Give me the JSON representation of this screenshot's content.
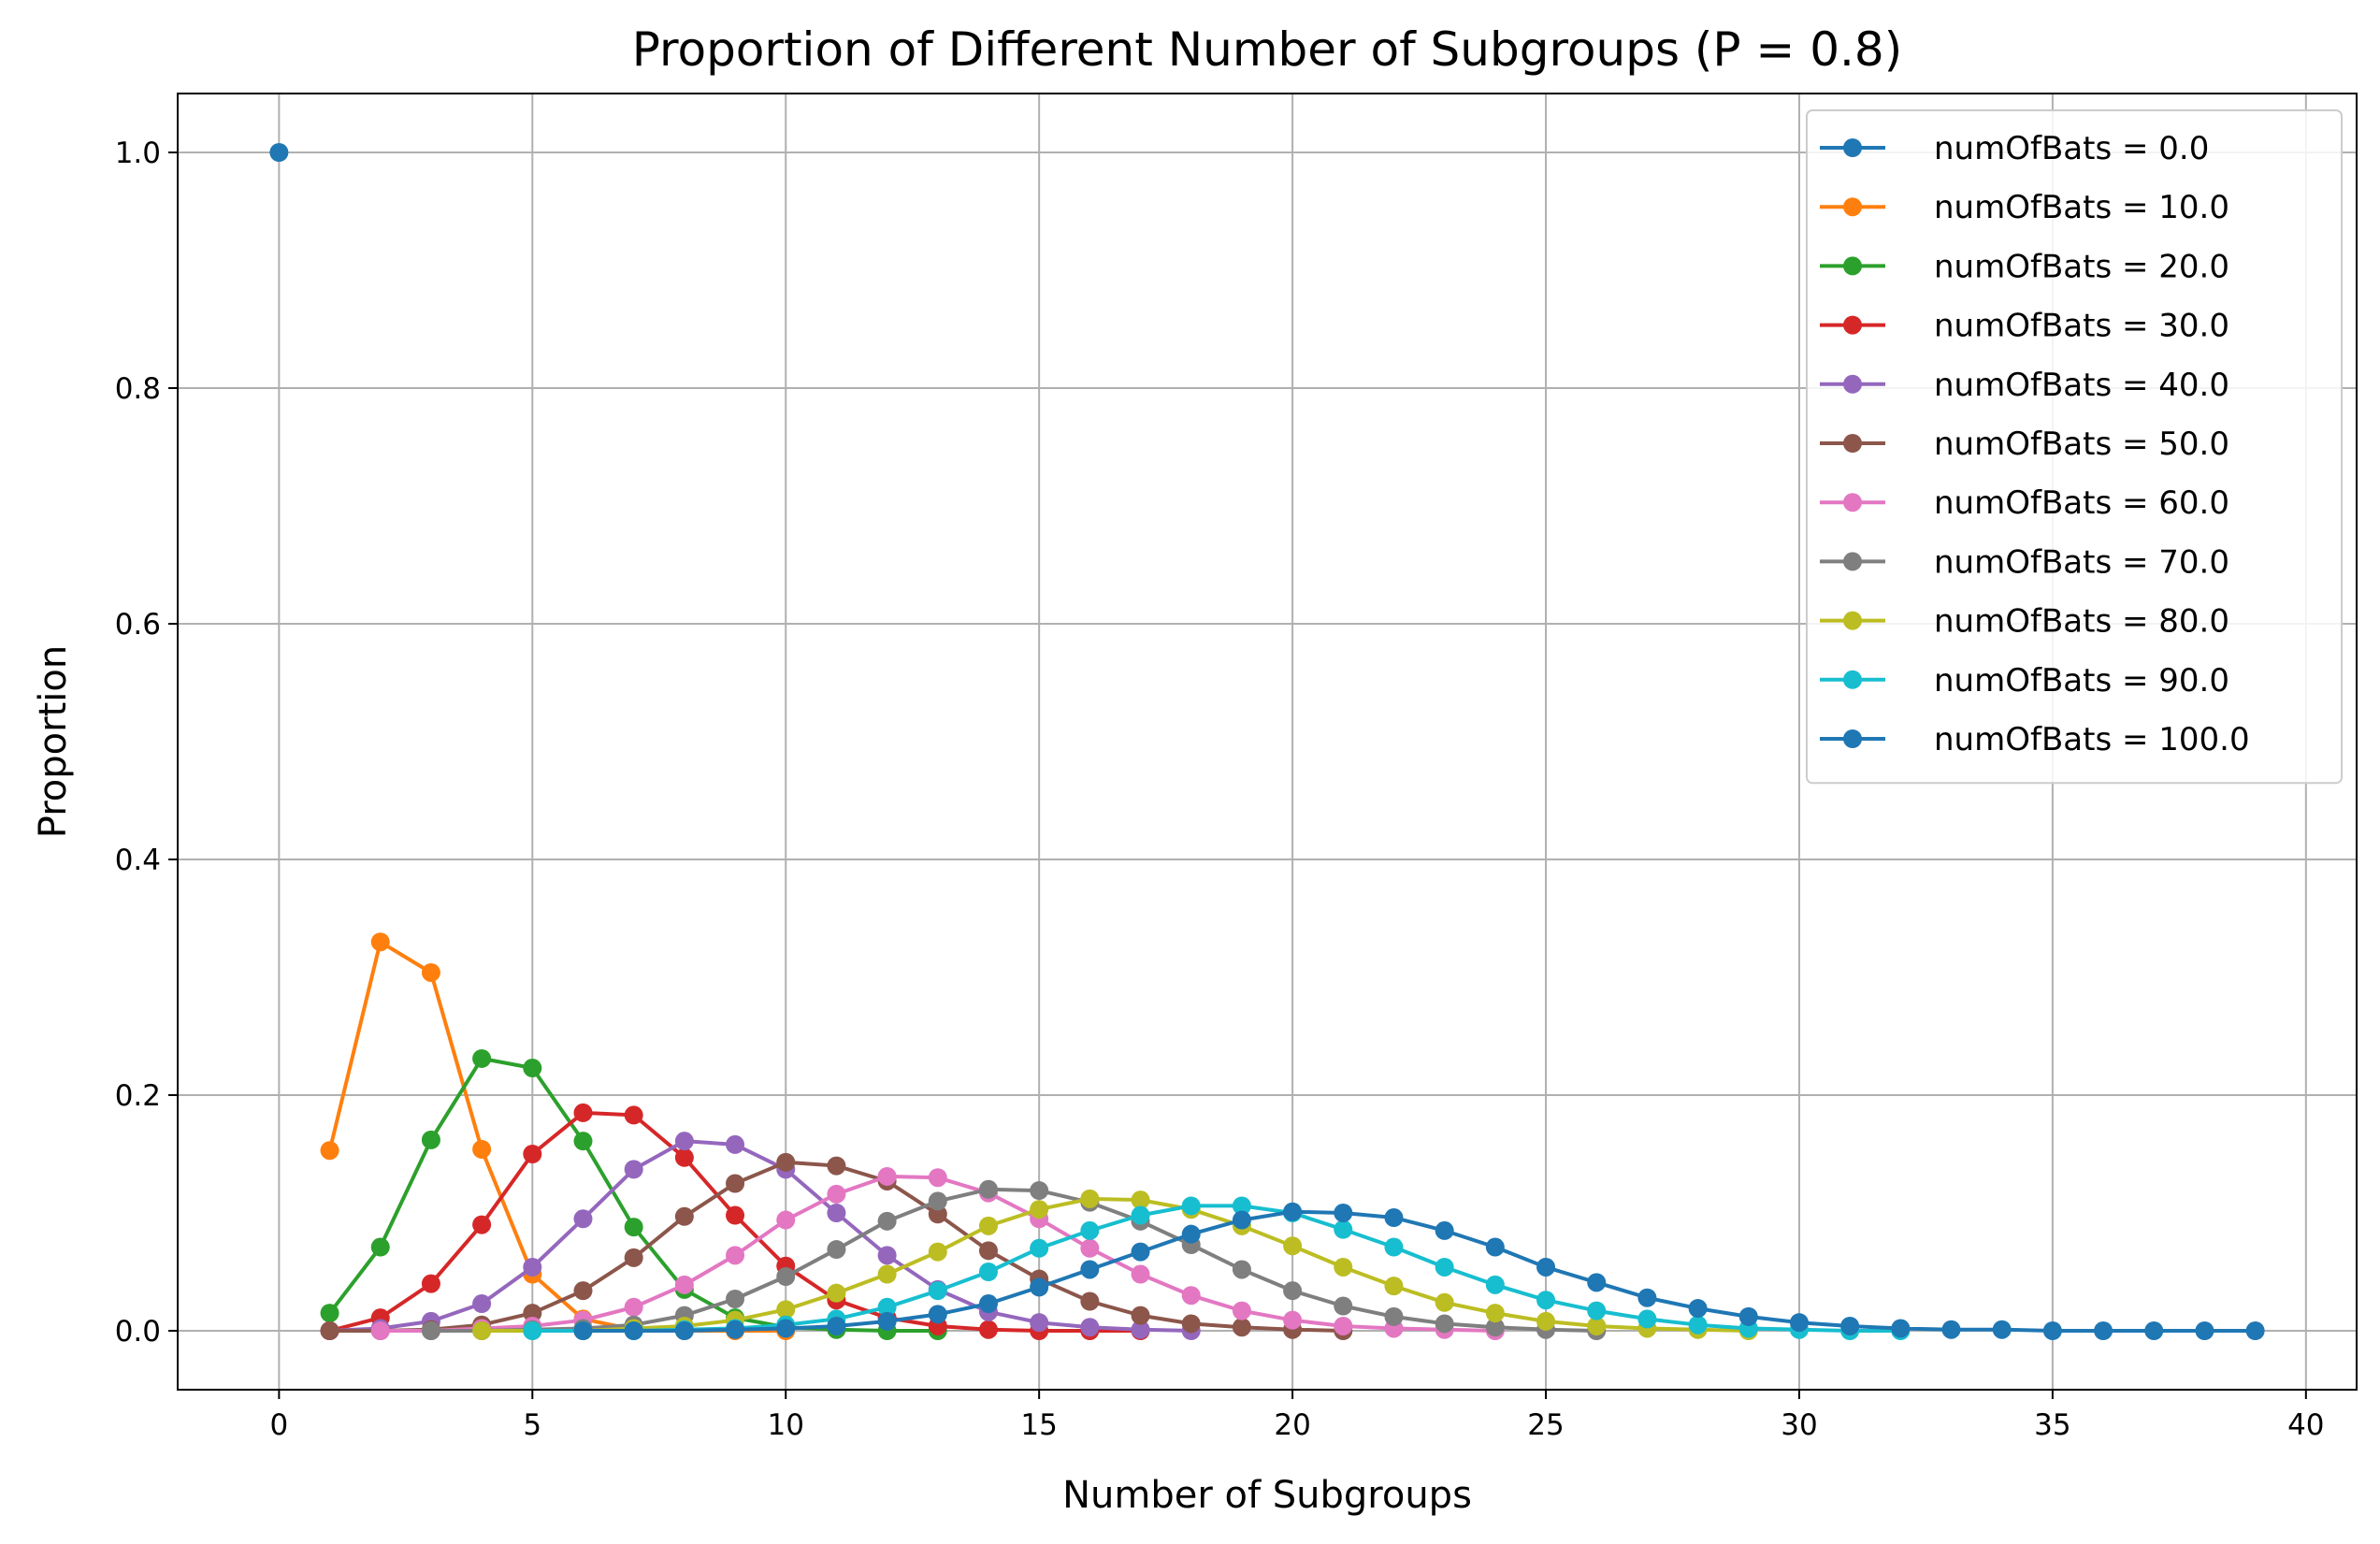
{
  "chart_data": {
    "type": "line",
    "title": "Proportion of Different Number of Subgroups (P = 0.8)",
    "xlabel": "Number of Subgroups",
    "ylabel": "Proportion",
    "xlim": [
      -2,
      41
    ],
    "ylim": [
      -0.05,
      1.05
    ],
    "xticks": [
      0,
      5,
      10,
      15,
      20,
      25,
      30,
      35,
      40
    ],
    "yticks": [
      0.0,
      0.2,
      0.4,
      0.6,
      0.8,
      1.0
    ],
    "xtick_labels": [
      "0",
      "5",
      "10",
      "15",
      "20",
      "25",
      "30",
      "35",
      "40"
    ],
    "ytick_labels": [
      "0.0",
      "0.2",
      "0.4",
      "0.6",
      "0.8",
      "1.0"
    ],
    "grid": true,
    "legend_position": "top-right",
    "series": [
      {
        "name": "numOfBats = 0.0",
        "color": "#1f77b4",
        "x": [
          0
        ],
        "y": [
          1.0
        ]
      },
      {
        "name": "numOfBats = 10.0",
        "color": "#ff7f0e",
        "x": [
          1,
          2,
          3,
          4,
          5,
          6,
          7,
          8,
          9,
          10
        ],
        "y": [
          0.153,
          0.33,
          0.304,
          0.154,
          0.048,
          0.01,
          0.001,
          0.0,
          0.0,
          0.0
        ]
      },
      {
        "name": "numOfBats = 20.0",
        "color": "#2ca02c",
        "x": [
          1,
          2,
          3,
          4,
          5,
          6,
          7,
          8,
          9,
          10,
          11,
          12,
          13
        ],
        "y": [
          0.015,
          0.071,
          0.162,
          0.231,
          0.223,
          0.161,
          0.088,
          0.035,
          0.011,
          0.003,
          0.001,
          0.0,
          0.0
        ]
      },
      {
        "name": "numOfBats = 30.0",
        "color": "#d62728",
        "x": [
          1,
          2,
          3,
          4,
          5,
          6,
          7,
          8,
          9,
          10,
          11,
          12,
          13,
          14,
          15,
          16,
          17
        ],
        "y": [
          0.0,
          0.011,
          0.04,
          0.09,
          0.15,
          0.185,
          0.183,
          0.147,
          0.098,
          0.055,
          0.026,
          0.011,
          0.004,
          0.001,
          0.0,
          0.0,
          0.0
        ]
      },
      {
        "name": "numOfBats = 40.0",
        "color": "#9467bd",
        "x": [
          1,
          2,
          3,
          4,
          5,
          6,
          7,
          8,
          9,
          10,
          11,
          12,
          13,
          14,
          15,
          16,
          17,
          18
        ],
        "y": [
          0.0,
          0.002,
          0.008,
          0.023,
          0.054,
          0.095,
          0.137,
          0.161,
          0.158,
          0.137,
          0.1,
          0.064,
          0.035,
          0.016,
          0.007,
          0.003,
          0.001,
          0.0
        ]
      },
      {
        "name": "numOfBats = 50.0",
        "color": "#8c564b",
        "x": [
          1,
          2,
          3,
          4,
          5,
          6,
          7,
          8,
          9,
          10,
          11,
          12,
          13,
          14,
          15,
          16,
          17,
          18,
          19,
          20,
          21
        ],
        "y": [
          0.0,
          0.0,
          0.001,
          0.005,
          0.015,
          0.034,
          0.062,
          0.097,
          0.125,
          0.143,
          0.14,
          0.127,
          0.099,
          0.068,
          0.044,
          0.025,
          0.013,
          0.006,
          0.003,
          0.001,
          0.0
        ]
      },
      {
        "name": "numOfBats = 60.0",
        "color": "#e377c2",
        "x": [
          2,
          3,
          4,
          5,
          6,
          7,
          8,
          9,
          10,
          11,
          12,
          13,
          14,
          15,
          16,
          17,
          18,
          19,
          20,
          21,
          22,
          23,
          24
        ],
        "y": [
          0.0,
          0.0,
          0.002,
          0.004,
          0.009,
          0.02,
          0.039,
          0.064,
          0.094,
          0.116,
          0.131,
          0.13,
          0.117,
          0.095,
          0.07,
          0.048,
          0.03,
          0.017,
          0.009,
          0.004,
          0.002,
          0.001,
          0.0
        ]
      },
      {
        "name": "numOfBats = 70.0",
        "color": "#7f7f7f",
        "x": [
          3,
          4,
          5,
          6,
          7,
          8,
          9,
          10,
          11,
          12,
          13,
          14,
          15,
          16,
          17,
          18,
          19,
          20,
          21,
          22,
          23,
          24,
          25,
          26
        ],
        "y": [
          0.0,
          0.0,
          0.001,
          0.002,
          0.005,
          0.013,
          0.027,
          0.046,
          0.069,
          0.093,
          0.11,
          0.12,
          0.119,
          0.109,
          0.093,
          0.073,
          0.052,
          0.034,
          0.021,
          0.012,
          0.006,
          0.003,
          0.001,
          0.0
        ]
      },
      {
        "name": "numOfBats = 80.0",
        "color": "#bcbd22",
        "x": [
          4,
          5,
          6,
          7,
          8,
          9,
          10,
          11,
          12,
          13,
          14,
          15,
          16,
          17,
          18,
          19,
          20,
          21,
          22,
          23,
          24,
          25,
          26,
          27,
          28,
          29
        ],
        "y": [
          0.0,
          0.0,
          0.0,
          0.002,
          0.004,
          0.009,
          0.018,
          0.032,
          0.048,
          0.067,
          0.089,
          0.103,
          0.112,
          0.111,
          0.103,
          0.089,
          0.072,
          0.054,
          0.038,
          0.024,
          0.015,
          0.008,
          0.004,
          0.002,
          0.001,
          0.0
        ]
      },
      {
        "name": "numOfBats = 90.0",
        "color": "#17becf",
        "x": [
          5,
          6,
          7,
          8,
          9,
          10,
          11,
          12,
          13,
          14,
          15,
          16,
          17,
          18,
          19,
          20,
          21,
          22,
          23,
          24,
          25,
          26,
          27,
          28,
          29,
          30,
          31,
          32
        ],
        "y": [
          0.0,
          0.0,
          0.0,
          0.001,
          0.002,
          0.005,
          0.01,
          0.02,
          0.034,
          0.05,
          0.07,
          0.085,
          0.098,
          0.106,
          0.106,
          0.1,
          0.086,
          0.071,
          0.054,
          0.039,
          0.026,
          0.017,
          0.01,
          0.005,
          0.002,
          0.001,
          0.0,
          0.0
        ]
      },
      {
        "name": "numOfBats = 100.0",
        "color": "#1f77b4",
        "x": [
          6,
          7,
          8,
          9,
          10,
          11,
          12,
          13,
          14,
          15,
          16,
          17,
          18,
          19,
          20,
          21,
          22,
          23,
          24,
          25,
          26,
          27,
          28,
          29,
          30,
          31,
          32,
          33,
          34,
          35,
          36,
          37,
          38,
          39
        ],
        "y": [
          0.0,
          0.0,
          0.0,
          0.001,
          0.002,
          0.004,
          0.008,
          0.014,
          0.023,
          0.037,
          0.052,
          0.067,
          0.082,
          0.094,
          0.101,
          0.1,
          0.096,
          0.085,
          0.071,
          0.054,
          0.041,
          0.028,
          0.019,
          0.012,
          0.007,
          0.004,
          0.002,
          0.001,
          0.001,
          0.0,
          0.0,
          0.0,
          0.0,
          0.0
        ]
      }
    ]
  }
}
